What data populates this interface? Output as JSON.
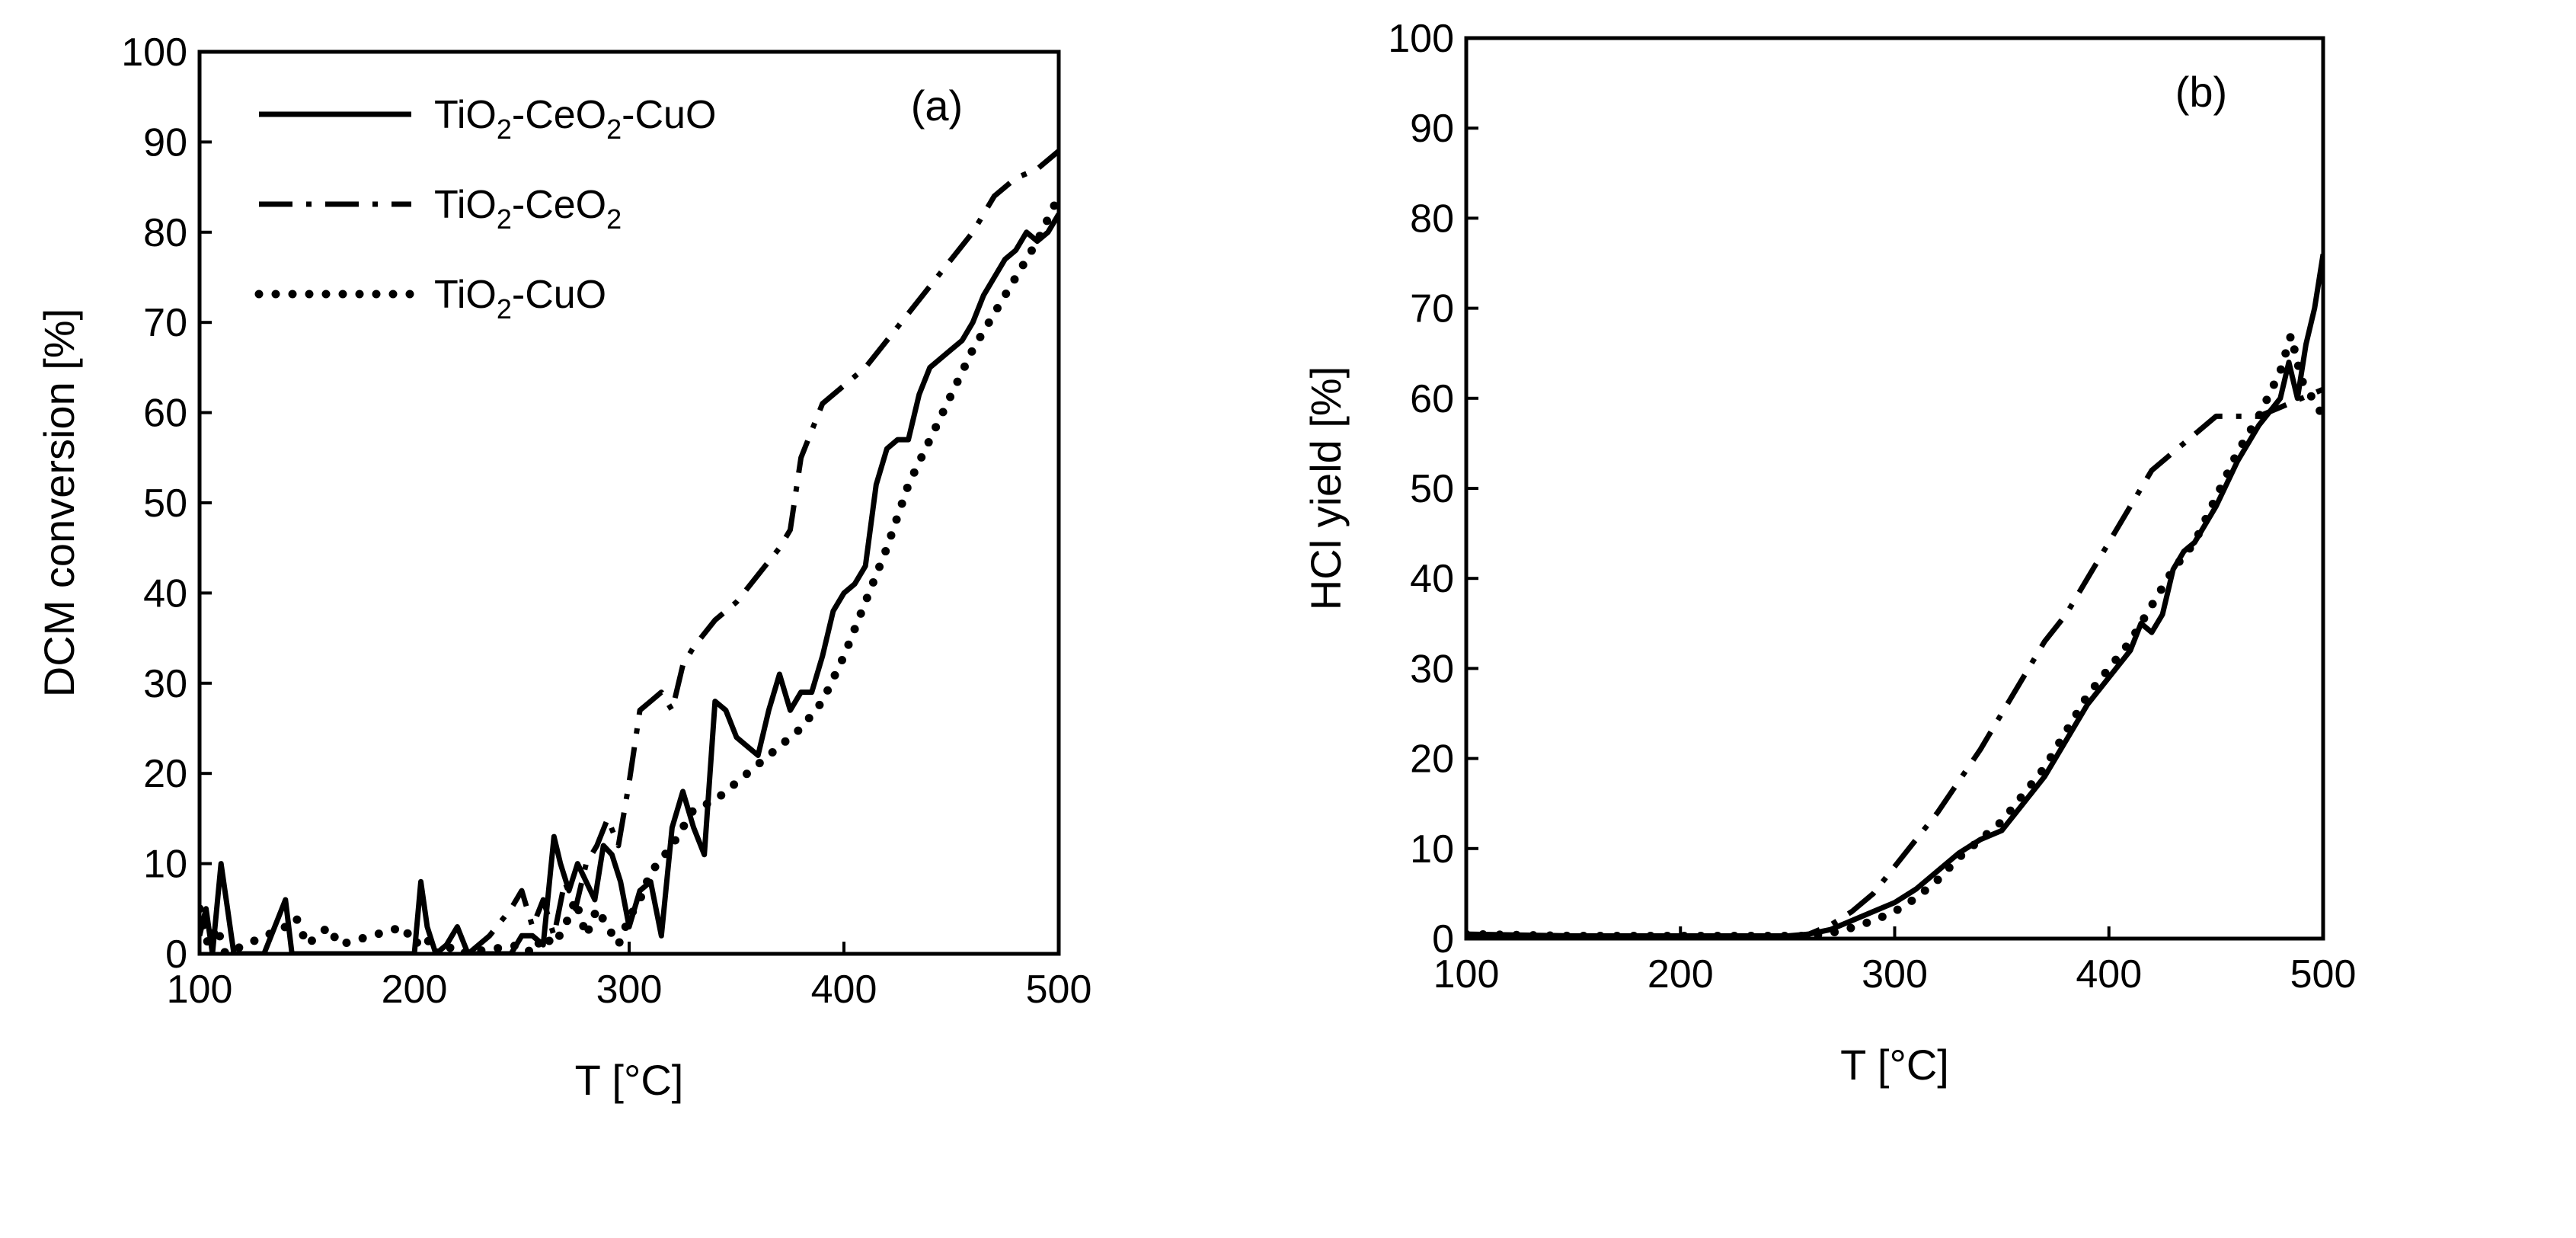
{
  "figure_title": "",
  "chart_data": [
    {
      "type": "line",
      "panel_label": "(a)",
      "title": "",
      "xlabel": "T [°C]",
      "ylabel": "DCM conversion [%]",
      "xlim": [
        100,
        500
      ],
      "ylim": [
        0,
        100
      ],
      "xticks": [
        100,
        200,
        300,
        400,
        500
      ],
      "yticks": [
        0,
        10,
        20,
        30,
        40,
        50,
        60,
        70,
        80,
        90,
        100
      ],
      "grid": false,
      "legend_position": "top-left",
      "series": [
        {
          "name": "TiO2-CeO2-CuO",
          "legend_parts": [
            {
              "text": "TiO"
            },
            {
              "text": "2",
              "sub": true
            },
            {
              "text": "-CeO"
            },
            {
              "text": "2",
              "sub": true
            },
            {
              "text": "-CuO"
            }
          ],
          "style": "solid",
          "x": [
            100,
            103,
            106,
            110,
            113,
            116,
            120,
            130,
            140,
            143,
            146,
            200,
            203,
            206,
            210,
            215,
            220,
            225,
            245,
            250,
            255,
            260,
            265,
            268,
            272,
            276,
            280,
            284,
            288,
            292,
            296,
            300,
            305,
            310,
            315,
            320,
            325,
            330,
            335,
            340,
            345,
            350,
            355,
            360,
            365,
            370,
            375,
            380,
            385,
            390,
            395,
            400,
            405,
            410,
            415,
            420,
            425,
            430,
            435,
            440,
            445,
            450,
            455,
            460,
            465,
            470,
            475,
            480,
            485,
            490,
            495,
            500
          ],
          "y": [
            2,
            5,
            0,
            10,
            5,
            0,
            0,
            0,
            6,
            0,
            0,
            0,
            8,
            3,
            0,
            1,
            3,
            0,
            0,
            2,
            2,
            1,
            13,
            10,
            7,
            10,
            8,
            6,
            12,
            11,
            8,
            3,
            7,
            8,
            2,
            14,
            18,
            14,
            11,
            28,
            27,
            24,
            23,
            22,
            27,
            31,
            27,
            29,
            29,
            33,
            38,
            40,
            41,
            43,
            52,
            56,
            57,
            57,
            62,
            65,
            66,
            67,
            68,
            70,
            73,
            75,
            77,
            78,
            80,
            79,
            80,
            82
          ]
        },
        {
          "name": "TiO2-CeO2",
          "legend_parts": [
            {
              "text": "TiO"
            },
            {
              "text": "2",
              "sub": true
            },
            {
              "text": "-CeO"
            },
            {
              "text": "2",
              "sub": true
            }
          ],
          "style": "dashdot",
          "x": [
            225,
            235,
            245,
            250,
            255,
            260,
            265,
            270,
            275,
            280,
            285,
            290,
            295,
            300,
            305,
            310,
            315,
            320,
            325,
            330,
            340,
            350,
            360,
            370,
            375,
            380,
            385,
            390,
            400,
            410,
            420,
            430,
            440,
            450,
            460,
            470,
            480,
            490,
            500
          ],
          "y": [
            0,
            2,
            5,
            7,
            3,
            6,
            2,
            8,
            5,
            10,
            12,
            15,
            12,
            19,
            27,
            28,
            29,
            27,
            32,
            34,
            37,
            39,
            42,
            45,
            47,
            55,
            58,
            61,
            63,
            65,
            68,
            71,
            74,
            77,
            80,
            84,
            86,
            87,
            89
          ]
        },
        {
          "name": "TiO2-CuO",
          "legend_parts": [
            {
              "text": "TiO"
            },
            {
              "text": "2",
              "sub": true
            },
            {
              "text": "-CuO"
            }
          ],
          "style": "dotted",
          "x": [
            100,
            104,
            108,
            112,
            140,
            145,
            150,
            155,
            160,
            165,
            195,
            200,
            205,
            210,
            215,
            220,
            250,
            255,
            260,
            265,
            270,
            275,
            280,
            285,
            290,
            295,
            300,
            305,
            310,
            320,
            330,
            340,
            350,
            360,
            370,
            380,
            390,
            400,
            410,
            420,
            430,
            440,
            450,
            460,
            470,
            480,
            490,
            500
          ],
          "y": [
            5,
            1,
            3,
            0,
            3,
            4,
            1,
            2,
            3,
            1,
            3,
            1,
            2,
            0,
            1,
            0,
            1,
            0,
            2,
            1,
            3,
            6,
            2,
            5,
            3,
            1,
            4,
            6,
            9,
            12,
            16,
            17,
            19,
            21,
            23,
            25,
            28,
            33,
            39,
            45,
            52,
            57,
            62,
            67,
            71,
            75,
            79,
            84
          ]
        }
      ]
    },
    {
      "type": "line",
      "panel_label": "(b)",
      "title": "",
      "xlabel": "T [°C]",
      "ylabel": "HCl yield  [%]",
      "xlim": [
        100,
        500
      ],
      "ylim": [
        0,
        100
      ],
      "xticks": [
        100,
        200,
        300,
        400,
        500
      ],
      "yticks": [
        0,
        10,
        20,
        30,
        40,
        50,
        60,
        70,
        80,
        90,
        100
      ],
      "grid": false,
      "legend_position": "none",
      "series": [
        {
          "name": "TiO2-CeO2-CuO",
          "style": "solid",
          "x": [
            100,
            150,
            200,
            250,
            260,
            270,
            280,
            290,
            300,
            310,
            320,
            330,
            340,
            350,
            360,
            370,
            380,
            390,
            400,
            410,
            415,
            420,
            425,
            430,
            435,
            440,
            450,
            460,
            470,
            480,
            484,
            488,
            492,
            496,
            500
          ],
          "y": [
            0.5,
            0.3,
            0.3,
            0.3,
            0.5,
            1,
            2,
            3,
            4,
            5.5,
            7.5,
            9.5,
            11,
            12,
            15,
            18,
            22,
            26,
            29,
            32,
            35,
            34,
            36,
            41,
            43,
            44,
            48,
            53,
            57,
            60,
            64,
            60,
            66,
            70,
            76
          ]
        },
        {
          "name": "TiO2-CeO2",
          "style": "dashdot",
          "x": [
            250,
            260,
            270,
            280,
            290,
            300,
            310,
            320,
            330,
            340,
            350,
            360,
            370,
            380,
            390,
            400,
            410,
            420,
            430,
            440,
            450,
            460,
            470,
            480,
            490,
            500
          ],
          "y": [
            0,
            0.5,
            1.5,
            3,
            5,
            8,
            11,
            14,
            17.5,
            21,
            25,
            29,
            33,
            36,
            40,
            44,
            48,
            52,
            54,
            56,
            58,
            58,
            58,
            59,
            60,
            61
          ]
        },
        {
          "name": "TiO2-CuO",
          "style": "dotted",
          "x": [
            100,
            150,
            200,
            250,
            260,
            270,
            280,
            290,
            300,
            310,
            320,
            330,
            340,
            350,
            360,
            370,
            380,
            390,
            400,
            410,
            420,
            430,
            440,
            450,
            460,
            470,
            480,
            485,
            490,
            495,
            500
          ],
          "y": [
            0.5,
            0.3,
            0.3,
            0.3,
            0.3,
            0.6,
            1.2,
            2,
            3,
            4.5,
            6.5,
            9,
            11,
            13,
            16,
            19,
            23,
            27,
            30,
            33,
            37,
            41,
            44,
            49,
            54,
            58,
            63,
            67,
            62,
            60,
            58
          ]
        }
      ]
    }
  ]
}
